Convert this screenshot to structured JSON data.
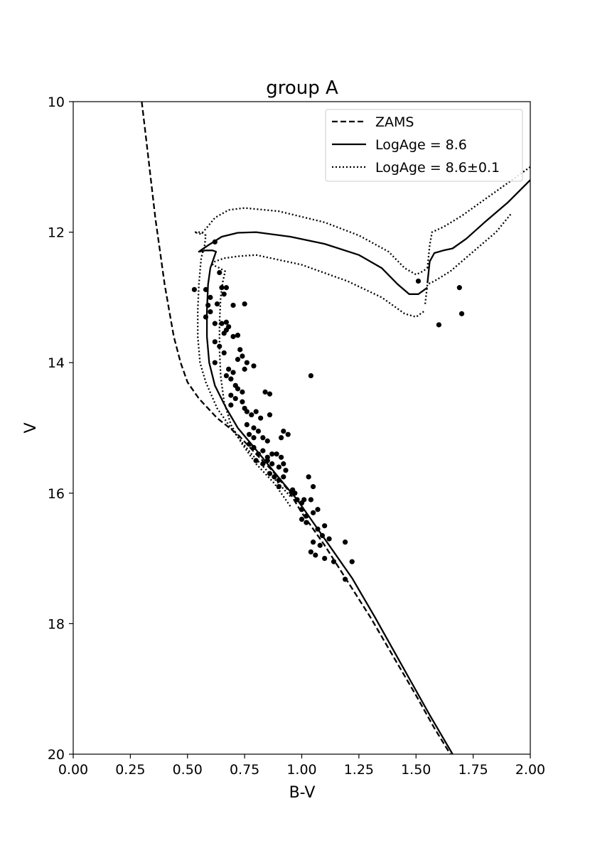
{
  "chart_data": {
    "type": "scatter",
    "title": "group A",
    "xlabel": "B-V",
    "ylabel": "V",
    "xlim": [
      0.0,
      2.0
    ],
    "ylim": [
      20,
      10
    ],
    "y_inverted": true,
    "grid": false,
    "legend_placement": "top-right",
    "x_ticks": [
      "0.00",
      "0.25",
      "0.50",
      "0.75",
      "1.00",
      "1.25",
      "1.50",
      "1.75",
      "2.00"
    ],
    "y_ticks": [
      "10",
      "12",
      "14",
      "16",
      "18",
      "20"
    ],
    "legend": [
      {
        "label": "ZAMS",
        "style": "dashed"
      },
      {
        "label": "LogAge = 8.6",
        "style": "solid"
      },
      {
        "label": "LogAge = 8.6±0.1",
        "style": "dotted"
      }
    ],
    "series": [
      {
        "name": "ZAMS",
        "style": "dashed",
        "points": [
          [
            0.3,
            10.0
          ],
          [
            0.32,
            10.6
          ],
          [
            0.34,
            11.2
          ],
          [
            0.36,
            11.8
          ],
          [
            0.38,
            12.3
          ],
          [
            0.4,
            12.8
          ],
          [
            0.42,
            13.2
          ],
          [
            0.44,
            13.6
          ],
          [
            0.47,
            14.0
          ],
          [
            0.5,
            14.3
          ],
          [
            0.55,
            14.55
          ],
          [
            0.63,
            14.85
          ],
          [
            0.72,
            15.1
          ],
          [
            0.8,
            15.4
          ],
          [
            0.87,
            15.65
          ],
          [
            0.94,
            15.95
          ],
          [
            1.0,
            16.3
          ],
          [
            1.1,
            16.8
          ],
          [
            1.2,
            17.35
          ],
          [
            1.3,
            17.9
          ],
          [
            1.4,
            18.5
          ],
          [
            1.5,
            19.1
          ],
          [
            1.58,
            19.6
          ],
          [
            1.65,
            20.0
          ]
        ]
      },
      {
        "name": "LogAge = 8.6 (main sequence)",
        "style": "solid",
        "points": [
          [
            1.66,
            20.0
          ],
          [
            1.56,
            19.4
          ],
          [
            1.48,
            18.9
          ],
          [
            1.4,
            18.4
          ],
          [
            1.32,
            17.9
          ],
          [
            1.22,
            17.3
          ],
          [
            1.12,
            16.8
          ],
          [
            1.04,
            16.4
          ],
          [
            0.98,
            16.1
          ],
          [
            0.92,
            15.85
          ],
          [
            0.85,
            15.55
          ],
          [
            0.78,
            15.25
          ],
          [
            0.72,
            15.0
          ],
          [
            0.67,
            14.7
          ],
          [
            0.62,
            14.35
          ],
          [
            0.595,
            14.0
          ],
          [
            0.585,
            13.6
          ],
          [
            0.585,
            13.2
          ],
          [
            0.59,
            12.8
          ],
          [
            0.6,
            12.55
          ],
          [
            0.62,
            12.35
          ],
          [
            0.625,
            12.3
          ],
          [
            0.61,
            12.28
          ],
          [
            0.58,
            12.28
          ],
          [
            0.55,
            12.3
          ],
          [
            0.57,
            12.25
          ],
          [
            0.6,
            12.18
          ],
          [
            0.65,
            12.07
          ],
          [
            0.72,
            12.01
          ],
          [
            0.8,
            12.0
          ],
          [
            0.95,
            12.07
          ],
          [
            1.1,
            12.18
          ],
          [
            1.25,
            12.35
          ],
          [
            1.35,
            12.55
          ],
          [
            1.42,
            12.8
          ],
          [
            1.47,
            12.95
          ],
          [
            1.51,
            12.95
          ],
          [
            1.55,
            12.85
          ]
        ]
      },
      {
        "name": "LogAge = 8.6 (giant branch)",
        "style": "solid",
        "points": [
          [
            1.55,
            12.78
          ],
          [
            1.56,
            12.45
          ],
          [
            1.58,
            12.32
          ],
          [
            1.62,
            12.28
          ],
          [
            1.66,
            12.25
          ],
          [
            1.72,
            12.1
          ],
          [
            1.8,
            11.85
          ],
          [
            1.9,
            11.55
          ],
          [
            2.0,
            11.2
          ]
        ]
      },
      {
        "name": "LogAge = 8.6±0.1 (older, main sequence)",
        "style": "dotted",
        "points": [
          [
            0.95,
            16.2
          ],
          [
            0.88,
            15.85
          ],
          [
            0.8,
            15.55
          ],
          [
            0.74,
            15.25
          ],
          [
            0.69,
            14.95
          ],
          [
            0.66,
            14.6
          ],
          [
            0.645,
            14.2
          ],
          [
            0.64,
            13.8
          ],
          [
            0.64,
            13.4
          ],
          [
            0.645,
            13.0
          ],
          [
            0.655,
            12.75
          ],
          [
            0.665,
            12.6
          ],
          [
            0.64,
            12.55
          ],
          [
            0.61,
            12.5
          ],
          [
            0.62,
            12.45
          ],
          [
            0.66,
            12.4
          ],
          [
            0.72,
            12.37
          ],
          [
            0.8,
            12.35
          ],
          [
            1.0,
            12.5
          ],
          [
            1.2,
            12.75
          ],
          [
            1.35,
            13.0
          ],
          [
            1.45,
            13.25
          ],
          [
            1.5,
            13.3
          ],
          [
            1.54,
            13.2
          ]
        ]
      },
      {
        "name": "LogAge = 8.6±0.1 (older, giant branch)",
        "style": "dotted",
        "points": [
          [
            1.54,
            13.1
          ],
          [
            1.55,
            12.8
          ],
          [
            1.58,
            12.75
          ],
          [
            1.65,
            12.6
          ],
          [
            1.75,
            12.3
          ],
          [
            1.85,
            12.0
          ],
          [
            1.92,
            11.7
          ]
        ]
      },
      {
        "name": "LogAge = 8.6±0.1 (younger, main sequence)",
        "style": "dotted",
        "points": [
          [
            0.95,
            16.05
          ],
          [
            0.86,
            15.7
          ],
          [
            0.78,
            15.4
          ],
          [
            0.7,
            15.05
          ],
          [
            0.63,
            14.7
          ],
          [
            0.58,
            14.3
          ],
          [
            0.555,
            14.0
          ],
          [
            0.545,
            13.6
          ],
          [
            0.545,
            13.2
          ],
          [
            0.55,
            12.8
          ],
          [
            0.56,
            12.4
          ],
          [
            0.575,
            12.2
          ],
          [
            0.58,
            12.05
          ],
          [
            0.56,
            12.0
          ],
          [
            0.53,
            12.0
          ],
          [
            0.56,
            12.03
          ],
          [
            0.58,
            11.95
          ],
          [
            0.62,
            11.78
          ],
          [
            0.68,
            11.66
          ],
          [
            0.75,
            11.63
          ],
          [
            0.9,
            11.68
          ],
          [
            1.1,
            11.85
          ],
          [
            1.25,
            12.05
          ],
          [
            1.38,
            12.3
          ],
          [
            1.45,
            12.55
          ],
          [
            1.5,
            12.65
          ],
          [
            1.53,
            12.6
          ],
          [
            1.55,
            12.55
          ]
        ]
      },
      {
        "name": "LogAge = 8.6±0.1 (younger, giant branch)",
        "style": "dotted",
        "points": [
          [
            1.55,
            12.55
          ],
          [
            1.56,
            12.2
          ],
          [
            1.57,
            12.0
          ],
          [
            1.62,
            11.92
          ],
          [
            1.7,
            11.75
          ],
          [
            1.8,
            11.5
          ],
          [
            1.9,
            11.25
          ],
          [
            2.0,
            11.0
          ]
        ]
      },
      {
        "name": "observed stars",
        "style": "markers",
        "points": [
          [
            0.53,
            12.88
          ],
          [
            0.58,
            12.88
          ],
          [
            0.62,
            12.15
          ],
          [
            0.64,
            12.62
          ],
          [
            0.65,
            12.85
          ],
          [
            0.66,
            12.95
          ],
          [
            0.67,
            12.85
          ],
          [
            0.6,
            13.0
          ],
          [
            0.59,
            13.12
          ],
          [
            0.6,
            13.22
          ],
          [
            0.63,
            13.1
          ],
          [
            0.58,
            13.3
          ],
          [
            0.62,
            13.4
          ],
          [
            0.65,
            13.4
          ],
          [
            0.67,
            13.38
          ],
          [
            0.7,
            13.12
          ],
          [
            0.75,
            13.1
          ],
          [
            0.66,
            13.55
          ],
          [
            0.67,
            13.5
          ],
          [
            0.68,
            13.45
          ],
          [
            0.7,
            13.6
          ],
          [
            0.72,
            13.58
          ],
          [
            0.62,
            13.68
          ],
          [
            0.64,
            13.75
          ],
          [
            0.66,
            13.85
          ],
          [
            0.73,
            13.8
          ],
          [
            0.74,
            13.9
          ],
          [
            0.72,
            13.95
          ],
          [
            0.62,
            14.0
          ],
          [
            0.76,
            14.0
          ],
          [
            0.68,
            14.1
          ],
          [
            0.7,
            14.15
          ],
          [
            0.75,
            14.1
          ],
          [
            0.79,
            14.05
          ],
          [
            0.67,
            14.2
          ],
          [
            0.69,
            14.25
          ],
          [
            0.71,
            14.35
          ],
          [
            0.72,
            14.4
          ],
          [
            0.74,
            14.45
          ],
          [
            0.69,
            14.5
          ],
          [
            0.71,
            14.55
          ],
          [
            0.74,
            14.6
          ],
          [
            0.69,
            14.65
          ],
          [
            0.75,
            14.7
          ],
          [
            0.76,
            14.75
          ],
          [
            0.78,
            14.8
          ],
          [
            0.8,
            14.75
          ],
          [
            0.84,
            14.45
          ],
          [
            0.86,
            14.48
          ],
          [
            0.76,
            14.95
          ],
          [
            0.79,
            15.0
          ],
          [
            0.82,
            14.85
          ],
          [
            0.86,
            14.8
          ],
          [
            0.77,
            15.1
          ],
          [
            0.79,
            15.15
          ],
          [
            0.81,
            15.05
          ],
          [
            0.83,
            15.15
          ],
          [
            0.85,
            15.2
          ],
          [
            0.92,
            15.05
          ],
          [
            0.94,
            15.1
          ],
          [
            0.91,
            15.15
          ],
          [
            0.77,
            15.25
          ],
          [
            0.79,
            15.3
          ],
          [
            0.81,
            15.4
          ],
          [
            0.83,
            15.35
          ],
          [
            0.85,
            15.45
          ],
          [
            0.87,
            15.4
          ],
          [
            0.89,
            15.4
          ],
          [
            0.91,
            15.45
          ],
          [
            0.8,
            15.5
          ],
          [
            0.83,
            15.55
          ],
          [
            0.85,
            15.5
          ],
          [
            0.87,
            15.55
          ],
          [
            0.9,
            15.6
          ],
          [
            0.92,
            15.55
          ],
          [
            0.86,
            15.7
          ],
          [
            0.88,
            15.75
          ],
          [
            0.9,
            15.8
          ],
          [
            0.92,
            15.75
          ],
          [
            0.93,
            15.65
          ],
          [
            0.9,
            15.9
          ],
          [
            0.96,
            15.95
          ],
          [
            0.97,
            16.0
          ],
          [
            0.98,
            16.1
          ],
          [
            1.0,
            16.15
          ],
          [
            1.01,
            16.1
          ],
          [
            1.04,
            16.1
          ],
          [
            1.0,
            16.25
          ],
          [
            1.02,
            16.35
          ],
          [
            1.05,
            16.3
          ],
          [
            1.07,
            16.25
          ],
          [
            1.0,
            16.4
          ],
          [
            1.02,
            16.45
          ],
          [
            1.03,
            15.75
          ],
          [
            1.05,
            15.9
          ],
          [
            1.07,
            16.55
          ],
          [
            1.1,
            16.5
          ],
          [
            1.09,
            16.65
          ],
          [
            1.12,
            16.7
          ],
          [
            1.05,
            16.75
          ],
          [
            1.08,
            16.8
          ],
          [
            1.04,
            16.9
          ],
          [
            1.06,
            16.95
          ],
          [
            1.1,
            17.0
          ],
          [
            1.14,
            17.05
          ],
          [
            1.19,
            16.75
          ],
          [
            1.22,
            17.05
          ],
          [
            1.19,
            17.32
          ],
          [
            1.04,
            14.2
          ],
          [
            1.51,
            12.75
          ],
          [
            1.6,
            13.42
          ],
          [
            1.69,
            12.85
          ],
          [
            1.7,
            13.25
          ]
        ]
      }
    ]
  }
}
